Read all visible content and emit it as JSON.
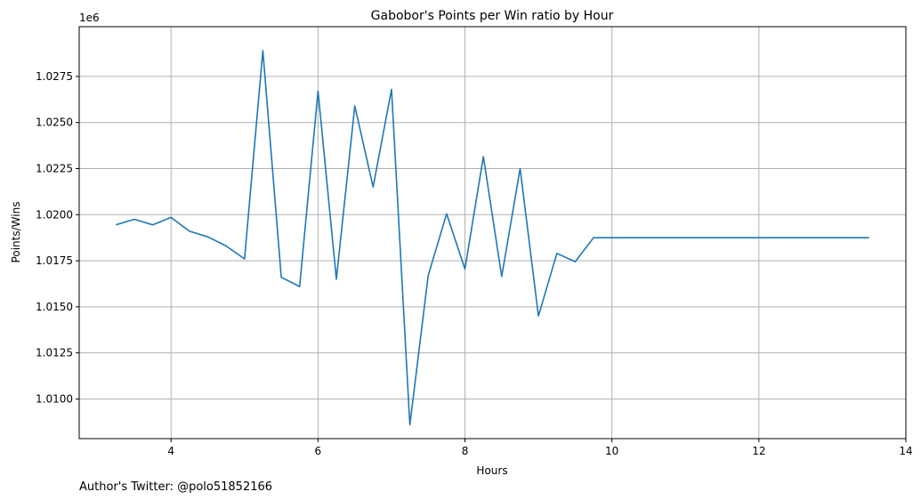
{
  "chart_data": {
    "type": "line",
    "title": "Gabobor's Points per Win ratio by Hour",
    "xlabel": "Hours",
    "ylabel": "Points/Wins",
    "y_offset_label": "1e6",
    "xlim": [
      2.75,
      14.0
    ],
    "ylim": [
      1.00785,
      1.0302
    ],
    "grid": true,
    "color": "#1f77b4",
    "x_ticks": [
      4,
      6,
      8,
      10,
      12,
      14
    ],
    "x_tick_labels": [
      "4",
      "6",
      "8",
      "10",
      "12",
      "14"
    ],
    "y_ticks": [
      1.01,
      1.0125,
      1.015,
      1.0175,
      1.02,
      1.0225,
      1.025,
      1.0275
    ],
    "y_tick_labels": [
      "1.0100",
      "1.0125",
      "1.0150",
      "1.0175",
      "1.0200",
      "1.0225",
      "1.0250",
      "1.0275"
    ],
    "series": [
      {
        "x": [
          3.25,
          3.5,
          3.75,
          4.0,
          4.25,
          4.5,
          4.75,
          5.0,
          5.25,
          5.5,
          5.75,
          6.0,
          6.25,
          6.5,
          6.75,
          7.0,
          7.25,
          7.5,
          7.75,
          8.0,
          8.25,
          8.5,
          8.75,
          9.0,
          9.25,
          9.5,
          9.75,
          10.0,
          10.25,
          10.5,
          10.75,
          11.0,
          11.25,
          11.5,
          11.75,
          12.0,
          12.25,
          12.5,
          12.75,
          13.0,
          13.25,
          13.5
        ],
        "y": [
          1.01945,
          1.01975,
          1.01945,
          1.01985,
          1.0191,
          1.0188,
          1.0183,
          1.0176,
          1.0289,
          1.0166,
          1.0161,
          1.0267,
          1.0165,
          1.0259,
          1.0215,
          1.0268,
          1.0086,
          1.0167,
          1.02005,
          1.01705,
          1.02315,
          1.01665,
          1.0225,
          1.0145,
          1.0179,
          1.01745,
          1.01875,
          1.01875,
          1.01875,
          1.01875,
          1.01875,
          1.01875,
          1.01875,
          1.01875,
          1.01875,
          1.01875,
          1.01875,
          1.01875,
          1.01875,
          1.01875,
          1.01875,
          1.01875
        ]
      }
    ]
  },
  "footer": {
    "text": "Author's Twitter: @polo51852166"
  }
}
